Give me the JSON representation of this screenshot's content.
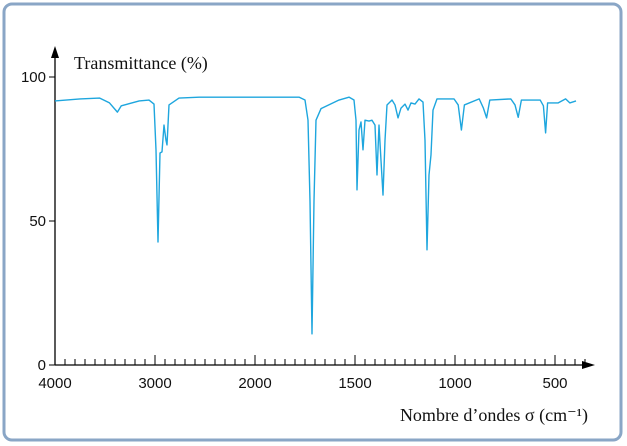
{
  "chart_data": {
    "type": "line",
    "title": "Transmittance (%)",
    "x_label": "Nombre d’ondes σ (cm⁻¹)",
    "color": "#1ea6de",
    "xlim": [
      4000,
      300
    ],
    "xticks": [
      4000,
      3000,
      2000,
      1500,
      1000,
      500
    ],
    "xminorticks": [
      3900,
      3800,
      3700,
      3600,
      3500,
      3400,
      3300,
      3200,
      3100,
      2900,
      2800,
      2700,
      2600,
      2500,
      2400,
      2300,
      2200,
      2100,
      1950,
      1900,
      1850,
      1800,
      1750,
      1700,
      1650,
      1600,
      1550,
      1450,
      1400,
      1350,
      1300,
      1250,
      1200,
      1150,
      1100,
      1050,
      950,
      900,
      850,
      800,
      750,
      700,
      650,
      600,
      550,
      450,
      400,
      350
    ],
    "ylim": [
      0,
      100
    ],
    "yticks": [
      0,
      50,
      100
    ],
    "x": [
      4000,
      3750,
      3555,
      3455,
      3376,
      3337,
      3158,
      3060,
      3010,
      2990,
      2970,
      2950,
      2930,
      2910,
      2890,
      2880,
      2860,
      2760,
      2560,
      2050,
      1780,
      1750,
      1735,
      1725,
      1715,
      1705,
      1695,
      1670,
      1580,
      1530,
      1505,
      1495,
      1490,
      1480,
      1470,
      1460,
      1450,
      1430,
      1415,
      1400,
      1390,
      1380,
      1370,
      1360,
      1350,
      1340,
      1315,
      1300,
      1285,
      1270,
      1250,
      1235,
      1220,
      1200,
      1180,
      1160,
      1150,
      1140,
      1130,
      1120,
      1110,
      1090,
      1005,
      984,
      968,
      953,
      879,
      858,
      842,
      826,
      721,
      700,
      684,
      668,
      574,
      558,
      547,
      537,
      484,
      447,
      426,
      395
    ],
    "values": [
      91.7,
      92.4,
      92.7,
      91,
      87.8,
      90,
      91.7,
      92,
      90.6,
      74.7,
      42.7,
      73.6,
      74,
      83.3,
      78,
      76.4,
      90.3,
      92.7,
      93,
      93,
      93,
      92,
      85,
      57,
      10.8,
      57,
      85,
      89,
      92,
      93,
      92,
      85,
      60.8,
      81.6,
      84.4,
      74.7,
      85,
      84.7,
      85,
      83.3,
      66,
      83.3,
      71,
      59,
      78,
      90.3,
      92,
      90.3,
      85.8,
      89.2,
      90.6,
      88.5,
      91,
      90.6,
      92.4,
      91.3,
      78,
      40,
      66,
      73,
      88.5,
      92.4,
      92.4,
      90.3,
      81.6,
      90.3,
      92.4,
      89.2,
      85.8,
      92,
      92.4,
      90.3,
      86,
      92,
      92,
      90,
      80.6,
      91,
      91,
      92.4,
      91,
      91.7
    ]
  }
}
